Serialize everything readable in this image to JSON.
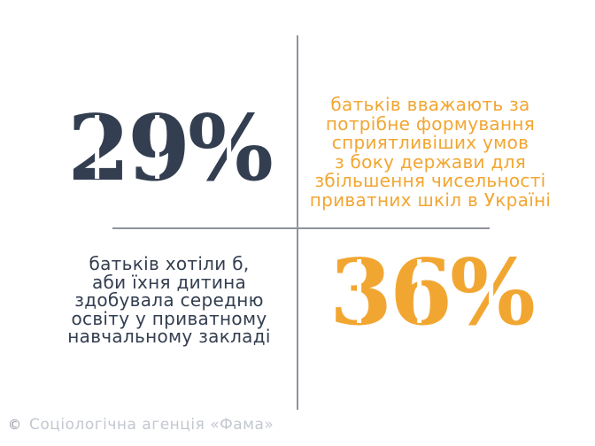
{
  "colors": {
    "navy": "#333E50",
    "orange": "#F2A632",
    "line": "#8F939B",
    "footer_text": "#C3C7CF",
    "footer_icon": "#878D98"
  },
  "stats": {
    "stat_29": {
      "value": "29%",
      "number_color": "#333E50",
      "description_color": "#F2A632",
      "description_lines": [
        "батьків вважають за",
        "потрібне формування",
        "сприятливіших умов",
        "з боку держави для",
        "збільшення чисельності",
        "приватних шкіл в Україні"
      ]
    },
    "stat_36": {
      "value": "36%",
      "number_color": "#F2A632",
      "description_color": "#333E50",
      "description_lines": [
        "батьків хотіли б,",
        "аби їхня дитина",
        "здобувала середню",
        "освіту у приватному",
        "навчальному закладі"
      ]
    }
  },
  "footer": {
    "icon_glyph": "©",
    "label": "Соціологічна агенція «Фама»"
  },
  "chart_data": {
    "type": "table",
    "title": "",
    "series": [
      {
        "name": "батьків вважають за потрібне формування сприятливіших умов з боку держави для збільшення чисельності приватних шкіл в Україні",
        "value": 29,
        "unit": "%",
        "color": "#333E50"
      },
      {
        "name": "батьків хотіли б, аби їхня дитина здобувала середню освіту у приватному навчальному закладі",
        "value": 36,
        "unit": "%",
        "color": "#F2A632"
      }
    ],
    "source": "Соціологічна агенція «Фама»",
    "legend_position": "none",
    "grid": false
  }
}
